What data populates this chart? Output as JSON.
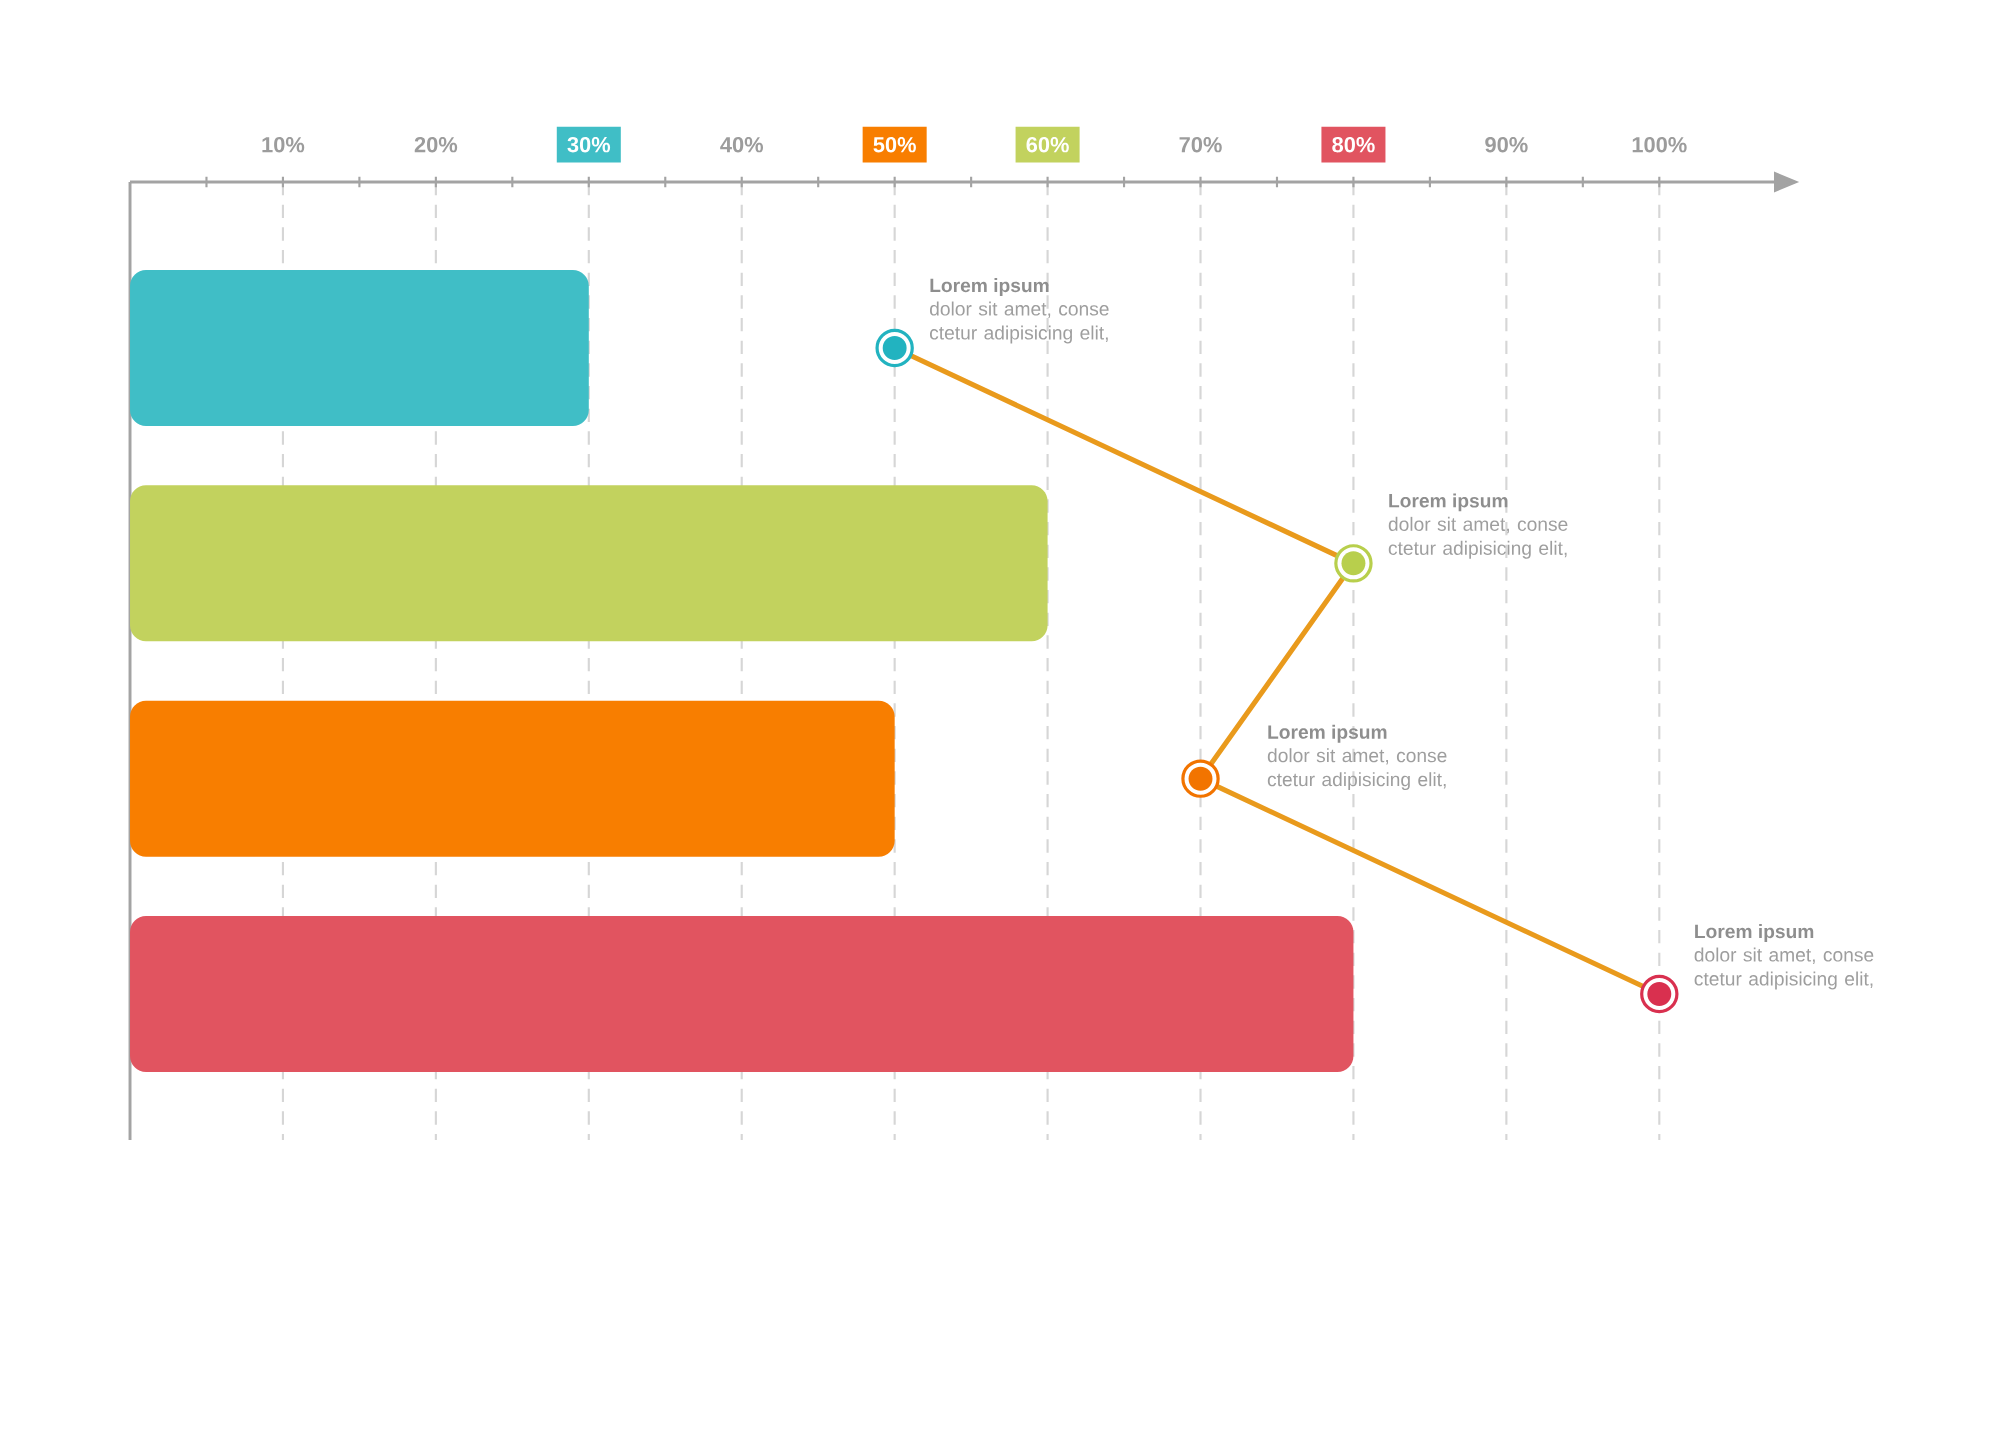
{
  "chart_data": {
    "type": "bar",
    "orientation": "horizontal",
    "categories": [
      null,
      null,
      null,
      null
    ],
    "series": [
      {
        "values": [
          30,
          60,
          50,
          80
        ],
        "colors": [
          "#40bec6",
          "#c2d25e",
          "#f87e00",
          "#e15460"
        ]
      },
      {
        "type": "line",
        "values": [
          50,
          80,
          70,
          100
        ],
        "color": "#e99a1c",
        "colors": [
          "#22b3c0",
          "#b8cf4c",
          "#f27400",
          "#d9304f"
        ],
        "marker": "circle"
      }
    ],
    "xlim": [
      0,
      107.5
    ],
    "xticks": [
      {
        "value": 5,
        "label": null
      },
      {
        "value": 10,
        "label": "10%"
      },
      {
        "value": 15,
        "label": null
      },
      {
        "value": 20,
        "label": "20%"
      },
      {
        "value": 25,
        "label": null
      },
      {
        "value": 30,
        "label": "30%"
      },
      {
        "value": 35,
        "label": null
      },
      {
        "value": 40,
        "label": "40%"
      },
      {
        "value": 45,
        "label": null
      },
      {
        "value": 50,
        "label": "50%"
      },
      {
        "value": 55,
        "label": null
      },
      {
        "value": 60,
        "label": "60%"
      },
      {
        "value": 65,
        "label": null
      },
      {
        "value": 70,
        "label": "70%"
      },
      {
        "value": 75,
        "label": null
      },
      {
        "value": 80,
        "label": "80%"
      },
      {
        "value": 85,
        "label": null
      },
      {
        "value": 90,
        "label": "90%"
      },
      {
        "value": 95,
        "label": null
      },
      {
        "value": 100,
        "label": "100%"
      }
    ],
    "grid": "x",
    "tick_labels": "x",
    "annotations": [
      "Lorem ipsum",
      "dolor sit amet, conse ctetur adipisicing elit,",
      "Lorem ipsum",
      "dolor sit amet, conse ctetur adipisicing elit,",
      "Lorem ipsum",
      "dolor sit amet, conse ctetur adipisicing elit,",
      "Lorem ipsum",
      "dolor sit amet, conse ctetur adipisicing elit,"
    ]
  }
}
